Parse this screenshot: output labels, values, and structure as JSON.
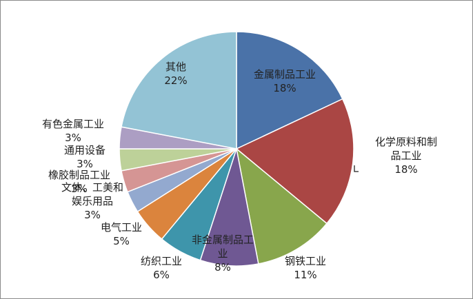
{
  "chart_data": {
    "type": "pie",
    "title": "",
    "slices": [
      {
        "label": [
          "金属制品工业"
        ],
        "pct": "18%",
        "value": 18,
        "color": "#4a72a8",
        "label_color": "#222222"
      },
      {
        "label": [
          "化学原料和制",
          "品工业"
        ],
        "pct": "18%",
        "value": 18,
        "color": "#aa4644",
        "label_color": "#222222"
      },
      {
        "label": [
          "钢铁工业"
        ],
        "pct": "11%",
        "value": 11,
        "color": "#88a64c",
        "label_color": "#222222"
      },
      {
        "label": [
          "非金属制品工",
          "业"
        ],
        "pct": "8%",
        "value": 8,
        "color": "#6f5893",
        "label_color": "#222222"
      },
      {
        "label": [
          "纺织工业"
        ],
        "pct": "6%",
        "value": 6,
        "color": "#3e95ab",
        "label_color": "#222222"
      },
      {
        "label": [
          "电气工业"
        ],
        "pct": "5%",
        "value": 5,
        "color": "#db843d",
        "label_color": "#222222"
      },
      {
        "label": [
          "文体、工美和",
          "娱乐用品"
        ],
        "pct": "3%",
        "value": 3,
        "color": "#93a9cf",
        "label_color": "#222222"
      },
      {
        "label": [
          "橡胶制品工业"
        ],
        "pct": "3%",
        "value": 3,
        "color": "#d59594",
        "label_color": "#222222"
      },
      {
        "label": [
          "通用设备"
        ],
        "pct": "3%",
        "value": 3,
        "color": "#bdd199",
        "label_color": "#222222"
      },
      {
        "label": [
          "有色金属工业"
        ],
        "pct": "3%",
        "value": 3,
        "color": "#ac9ec3",
        "label_color": "#222222"
      },
      {
        "label": [
          "其他"
        ],
        "pct": "22%",
        "value": 22,
        "color": "#93c3d5",
        "label_color": "#222222"
      }
    ]
  }
}
